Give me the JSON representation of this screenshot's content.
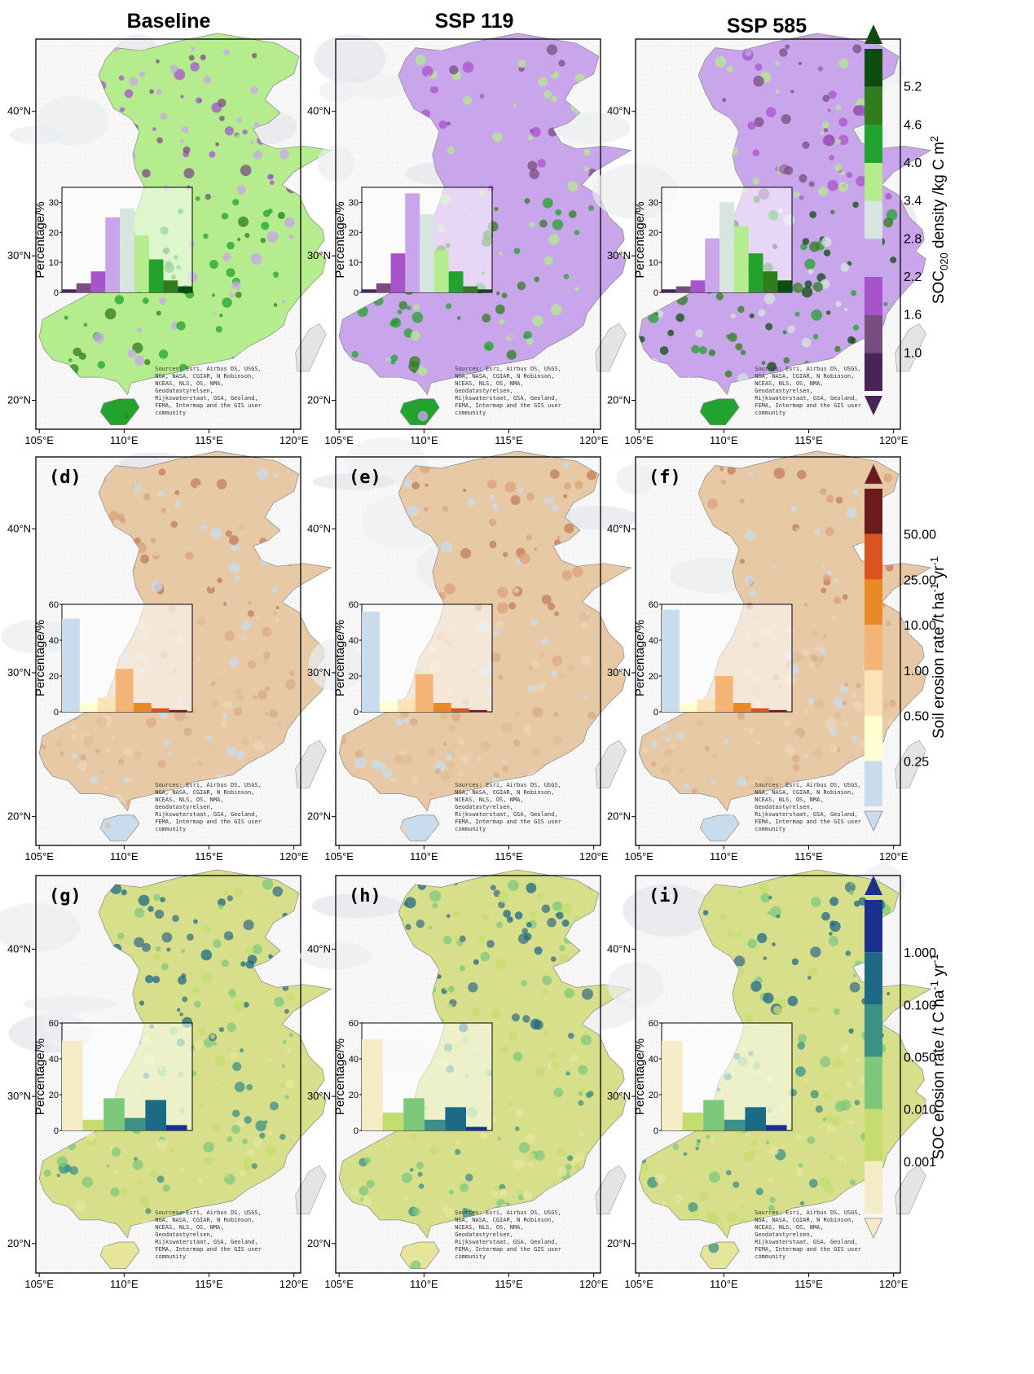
{
  "column_titles": [
    "Baseline",
    "SSP 119",
    "SSP 585"
  ],
  "panel_labels": [
    [
      "",
      "",
      ""
    ],
    [
      "(d)",
      "(e)",
      "(f)"
    ],
    [
      "(g)",
      "(h)",
      "(i)"
    ]
  ],
  "x_ticks": [
    "105°E",
    "110°E",
    "115°E",
    "120°E"
  ],
  "x_ticks_truncated": [
    "105°E",
    "110°E",
    "115°E",
    "120°E"
  ],
  "y_ticks": [
    "40°N",
    "30°N",
    "20°N"
  ],
  "inset_ylabel": "Percentage/%",
  "attribution": [
    "Sources: Esri, Airbus DS, USGS,",
    "NGA, NASA, CGIAR, N Robinson,",
    "NCEAS, NLS, OS, NMA,",
    "Geodatastyrelsen,",
    "Rijkswaterstaat, GSA, Geoland,",
    "FEMA, Intermap and the GIS user",
    "community"
  ],
  "colorbars": [
    {
      "title": "SOC020 density /kg C m2",
      "title_main": "SOC",
      "title_sub": "020",
      "title_rest": " density /kg C m",
      "title_sup": "2",
      "ticks": [
        "5.2",
        "4.6",
        "4.0",
        "3.4",
        "2.8",
        "2.2",
        "1.6",
        "1.0"
      ],
      "colors": [
        "#0b4d0f",
        "#2f7d1d",
        "#22a32f",
        "#b4ec8e",
        "#d6e6df",
        "#c9a5eb",
        "#a853cc",
        "#7a4d80",
        "#4a2458"
      ],
      "arrow_top": "#0b4d0f",
      "arrow_bottom": "#4a2458"
    },
    {
      "title": "Soil erosion rate /t ha-1 yr-1",
      "title_main": "Soil erosion rate /t ha",
      "sup1": "-1",
      "title_mid": " yr",
      "sup2": "-1",
      "ticks": [
        "50.00",
        "25.00",
        "10.00",
        "1.00",
        "0.50",
        "0.25"
      ],
      "colors": [
        "#6c1b1b",
        "#d9541f",
        "#ea8a26",
        "#f4b475",
        "#fbe3b8",
        "#fefed3",
        "#c8dced"
      ],
      "arrow_top": "#6c1b1b",
      "arrow_bottom": "#c8dced"
    },
    {
      "title": "SOC erosion rate /t C ha-1 yr-1",
      "title_main": "SOC erosion rate /t C ha",
      "sup1": "-1",
      "title_mid": " yr",
      "sup2": "-1",
      "ticks": [
        "1.000",
        "0.100",
        "0.050",
        "0.010",
        "0.001"
      ],
      "colors": [
        "#1b2f8f",
        "#1c6a85",
        "#3c9085",
        "#7ec87c",
        "#c4dd6e",
        "#f5ecc7"
      ],
      "arrow_top": "#1b2f8f",
      "arrow_bottom": "#f5ecc7"
    }
  ],
  "chart_data": [
    {
      "type": "bar",
      "panel": "SOC020 density - Baseline",
      "ylim": [
        0,
        35
      ],
      "yticks": [
        0,
        10,
        20,
        30
      ],
      "values": [
        1,
        3,
        7,
        25,
        28,
        19,
        11,
        4,
        2
      ]
    },
    {
      "type": "bar",
      "panel": "SOC020 density - SSP 119",
      "ylim": [
        0,
        35
      ],
      "yticks": [
        0,
        10,
        20,
        30
      ],
      "values": [
        1,
        3,
        13,
        33,
        26,
        14,
        7,
        2,
        1
      ]
    },
    {
      "type": "bar",
      "panel": "SOC020 density - SSP 585",
      "ylim": [
        0,
        35
      ],
      "yticks": [
        0,
        10,
        20,
        30
      ],
      "values": [
        1,
        2,
        4,
        18,
        30,
        22,
        13,
        7,
        4
      ]
    },
    {
      "type": "bar",
      "panel": "Soil erosion rate - (d)",
      "ylim": [
        0,
        60
      ],
      "yticks": [
        0,
        20,
        40,
        60
      ],
      "values": [
        52,
        5,
        8,
        24,
        5,
        2,
        1
      ]
    },
    {
      "type": "bar",
      "panel": "Soil erosion rate - (e)",
      "ylim": [
        0,
        60
      ],
      "yticks": [
        0,
        20,
        40,
        60
      ],
      "values": [
        56,
        6,
        7,
        21,
        5,
        2,
        1
      ]
    },
    {
      "type": "bar",
      "panel": "Soil erosion rate - (f)",
      "ylim": [
        0,
        60
      ],
      "yticks": [
        0,
        20,
        40,
        60
      ],
      "values": [
        57,
        5,
        7,
        20,
        5,
        2,
        1
      ]
    },
    {
      "type": "bar",
      "panel": "SOC erosion rate - (g)",
      "ylim": [
        0,
        60
      ],
      "yticks": [
        0,
        20,
        40,
        60
      ],
      "values": [
        50,
        6,
        18,
        7,
        17,
        3
      ]
    },
    {
      "type": "bar",
      "panel": "SOC erosion rate - (h)",
      "ylim": [
        0,
        60
      ],
      "yticks": [
        0,
        20,
        40,
        60
      ],
      "values": [
        51,
        10,
        18,
        6,
        13,
        2
      ]
    },
    {
      "type": "bar",
      "panel": "SOC erosion rate - (i)",
      "ylim": [
        0,
        60
      ],
      "yticks": [
        0,
        20,
        40,
        60
      ],
      "values": [
        50,
        10,
        17,
        6,
        13,
        3
      ]
    }
  ]
}
